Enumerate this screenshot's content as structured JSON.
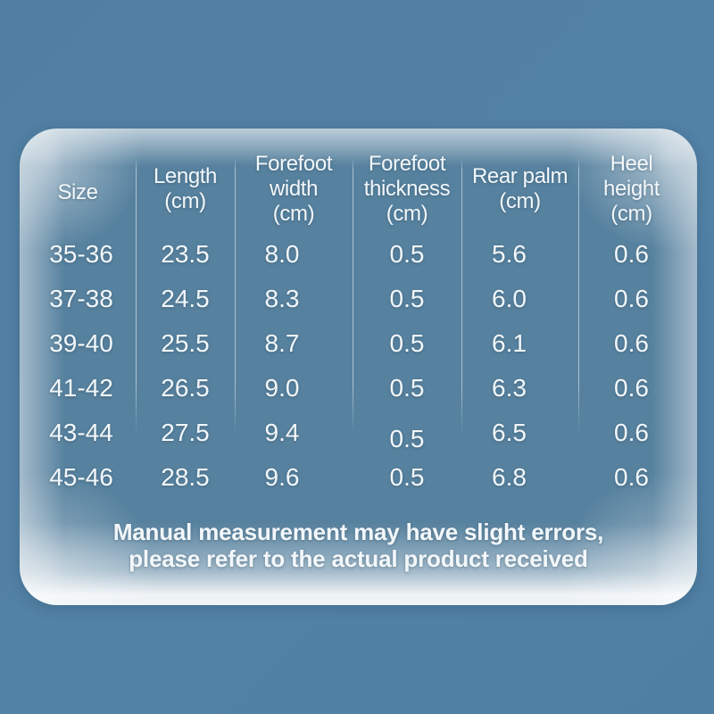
{
  "colors": {
    "background": "#5282A5",
    "card_base": "#57829F",
    "edge_glow": "#FFFFFF",
    "text": "#F2F7FA",
    "divider": "#EEF6FA"
  },
  "table": {
    "columns": [
      {
        "id": "size",
        "lines": [
          "Size"
        ]
      },
      {
        "id": "length",
        "lines": [
          "Length",
          "(cm)"
        ]
      },
      {
        "id": "forefoot-width",
        "lines": [
          "Forefoot",
          "width",
          "(cm)"
        ]
      },
      {
        "id": "forefoot-thickness",
        "lines": [
          "Forefoot",
          "thickness",
          "(cm)"
        ]
      },
      {
        "id": "rear-palm",
        "lines": [
          "Rear palm",
          "(cm)"
        ]
      },
      {
        "id": "heel-height",
        "lines": [
          "Heel",
          "height",
          "(cm)"
        ]
      }
    ],
    "rows": [
      [
        "35-36",
        "23.5",
        "8.0",
        "0.5",
        "5.6",
        "0.6"
      ],
      [
        "37-38",
        "24.5",
        "8.3",
        "0.5",
        "6.0",
        "0.6"
      ],
      [
        "39-40",
        "25.5",
        "8.7",
        "0.5",
        "6.1",
        "0.6"
      ],
      [
        "41-42",
        "26.5",
        "9.0",
        "0.5",
        "6.3",
        "0.6"
      ],
      [
        "43-44",
        "27.5",
        "9.4",
        "0.5",
        "6.5",
        "0.6"
      ],
      [
        "45-46",
        "28.5",
        "9.6",
        "0.5",
        "6.8",
        "0.6"
      ]
    ]
  },
  "footer": {
    "line1": "Manual measurement may have slight errors,",
    "line2": "please refer to the actual product received"
  },
  "chart_data": {
    "type": "table",
    "title": "Insole size chart",
    "columns": [
      "Size",
      "Length (cm)",
      "Forefoot width (cm)",
      "Forefoot thickness (cm)",
      "Rear palm (cm)",
      "Heel height (cm)"
    ],
    "rows": [
      [
        "35-36",
        23.5,
        8.0,
        0.5,
        5.6,
        0.6
      ],
      [
        "37-38",
        24.5,
        8.3,
        0.5,
        6.0,
        0.6
      ],
      [
        "39-40",
        25.5,
        8.7,
        0.5,
        6.1,
        0.6
      ],
      [
        "41-42",
        26.5,
        9.0,
        0.5,
        6.3,
        0.6
      ],
      [
        "43-44",
        27.5,
        9.4,
        0.5,
        6.5,
        0.6
      ],
      [
        "45-46",
        28.5,
        9.6,
        0.5,
        6.8,
        0.6
      ]
    ],
    "note": "Manual measurement may have slight errors, please refer to the actual product received"
  }
}
